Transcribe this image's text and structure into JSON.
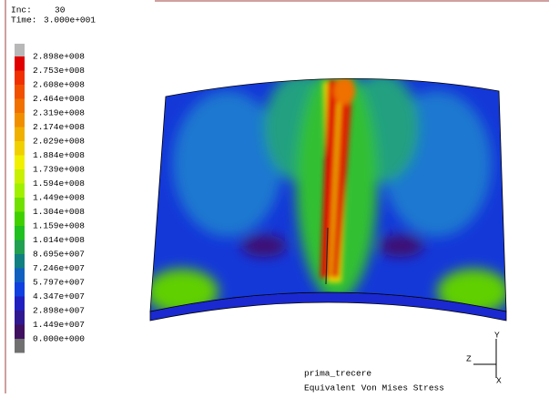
{
  "header": {
    "inc_label": "Inc:",
    "inc_value": "30",
    "time_label": "Time:",
    "time_value": "3.000e+001"
  },
  "legend": {
    "labels": [
      "2.898e+008",
      "2.753e+008",
      "2.608e+008",
      "2.464e+008",
      "2.319e+008",
      "2.174e+008",
      "2.029e+008",
      "1.884e+008",
      "1.739e+008",
      "1.594e+008",
      "1.449e+008",
      "1.304e+008",
      "1.159e+008",
      "1.014e+008",
      "8.695e+007",
      "7.246e+007",
      "5.797e+007",
      "4.347e+007",
      "2.898e+007",
      "1.449e+007",
      "0.000e+000"
    ],
    "colors": [
      "#b8b8b8",
      "#e00000",
      "#f03000",
      "#f05000",
      "#f07000",
      "#f09000",
      "#f0b000",
      "#f0d000",
      "#f0f000",
      "#c8f000",
      "#a0f000",
      "#70e000",
      "#40d000",
      "#20c020",
      "#20a050",
      "#108080",
      "#1060c0",
      "#1040e0",
      "#2020c0",
      "#301890",
      "#401060",
      "#707070"
    ]
  },
  "triad": {
    "y": "Y",
    "z": "Z",
    "x": "X"
  },
  "footer": {
    "model": "prima_trecere",
    "result": "Equivalent Von Mises Stress"
  }
}
